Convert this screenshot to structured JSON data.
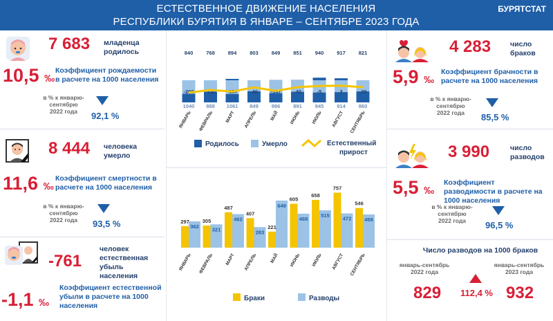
{
  "header": {
    "title_line1": "ЕСТЕСТВЕННОЕ ДВИЖЕНИЕ НАСЕЛЕНИЯ",
    "title_line2": "РЕСПУБЛИКИ БУРЯТИЯ В ЯНВАРЕ – СЕНТЯБРЕ 2023 ГОДА",
    "brand": "БУРЯТСТАТ"
  },
  "births": {
    "value": "7 683",
    "unit": "младенца родилось",
    "rate_int": "10,5",
    "rate_unit": "‰",
    "rate_label": "Коэффициент рождаемости в расчете на 1000 населения",
    "compare_label": "в % к январю-сентябрю 2022 года",
    "compare_value": "92,1 %",
    "icon": "baby-icon"
  },
  "deaths": {
    "value": "8 444",
    "unit": "человека умерло",
    "rate_int": "11,6",
    "rate_unit": "‰",
    "rate_label": "Коэффициент смертности в расчете на 1000 населения",
    "compare_label": "в % к январю-сентябрю 2022 года",
    "compare_value": "93,5 %",
    "icon": "portrait-icon"
  },
  "natural": {
    "value": "-761",
    "unit": "человек естественная убыль населения",
    "rate_int": "-1,1",
    "rate_unit": "‰",
    "rate_label": "Коэффициент естественной убыли в расчете на 1000 населения",
    "icon": "baby-portrait-icon"
  },
  "marriages": {
    "value": "4 283",
    "unit": "число браков",
    "rate_int": "5,9",
    "rate_unit": "‰",
    "rate_label": "Коэффициент брачности в расчете на 1000 населения",
    "compare_label": "в % к январю-сентябрю 2022 года",
    "compare_value": "85,5 %",
    "icon": "couple-heart-icon"
  },
  "divorces": {
    "value": "3 990",
    "unit": "число разводов",
    "rate_int": "5,5",
    "rate_unit": "‰",
    "rate_label": "Коэффициент разводимости в расчете на 1000 населения",
    "compare_label": "в % к январю-сентябрю 2022 года",
    "compare_value": "96,5 %",
    "icon": "couple-lightning-icon"
  },
  "divorce_ratio": {
    "title": "Число разводов на 1000 браков",
    "left_label": "январь-сентябрь 2022 года",
    "left_value": "829",
    "right_label": "январь-сентябрь 2023 года",
    "right_value": "932",
    "change": "112,4 %"
  },
  "colors": {
    "births": "#1f5fa8",
    "deaths": "#9cc3e6",
    "natural": "#f5c400",
    "marriages": "#f5c400",
    "divorces": "#9cc3e6",
    "accent_red": "#d81f36"
  },
  "chart_data": [
    {
      "type": "bar",
      "categories": [
        "ЯНВАРЬ",
        "ФЕВРАЛЬ",
        "МАРТ",
        "АПРЕЛЬ",
        "МАЙ",
        "ИЮНЬ",
        "ИЮЛЬ",
        "АВГУСТ",
        "СЕНТЯБРЬ"
      ],
      "series": [
        {
          "name": "Родилось",
          "values": [
            840,
            768,
            894,
            803,
            849,
            851,
            940,
            917,
            821
          ]
        },
        {
          "name": "Умерло",
          "values": [
            1040,
            888,
            1061,
            849,
            996,
            891,
            945,
            914,
            860
          ]
        },
        {
          "name": "Естественный прирост",
          "type": "line",
          "values": [
            -200,
            -120,
            -167,
            -46,
            -147,
            -40,
            -5,
            3,
            -39
          ]
        }
      ],
      "legend_position": "bottom"
    },
    {
      "type": "bar",
      "categories": [
        "ЯНВАРЬ",
        "ФЕВРАЛЬ",
        "МАРТ",
        "АПРЕЛЬ",
        "МАЙ",
        "ИЮНЬ",
        "ИЮЛЬ",
        "АВГУСТ",
        "СЕНТЯБРЬ"
      ],
      "series": [
        {
          "name": "Браки",
          "values": [
            297,
            305,
            487,
            407,
            221,
            605,
            658,
            757,
            546
          ]
        },
        {
          "name": "Разводы",
          "values": [
            362,
            321,
            462,
            283,
            649,
            468,
            515,
            472,
            458
          ]
        }
      ],
      "legend_position": "bottom"
    }
  ]
}
